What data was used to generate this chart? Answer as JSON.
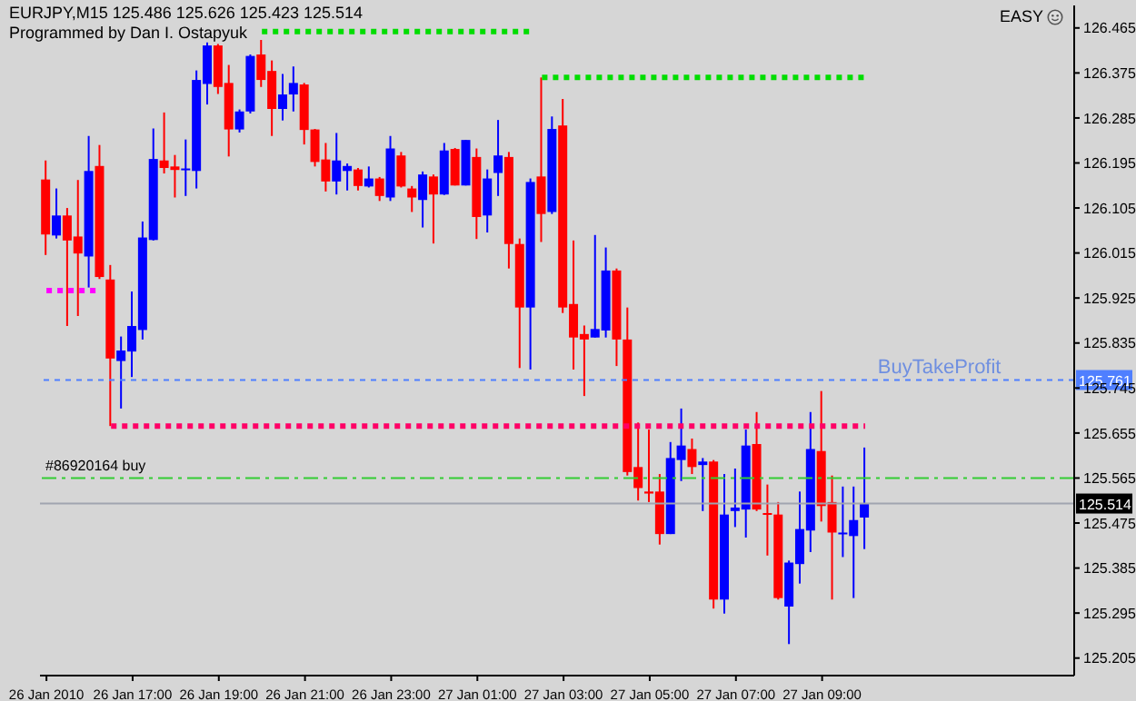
{
  "chart_data": {
    "type": "candlestick",
    "title": "EURJPY,M15 125.486 125.626 125.423 125.514",
    "subtitle": "Programmed by Dan I. Ostapyuk",
    "categories": [
      "26 Jan 2010",
      null,
      null,
      null,
      null,
      null,
      null,
      null,
      "26 Jan 17:00",
      null,
      null,
      null,
      null,
      null,
      null,
      null,
      "26 Jan 19:00",
      null,
      null,
      null,
      null,
      null,
      null,
      null,
      "26 Jan 21:00",
      null,
      null,
      null,
      null,
      null,
      null,
      null,
      "26 Jan 23:00",
      null,
      null,
      null,
      null,
      null,
      null,
      null,
      "27 Jan 01:00",
      null,
      null,
      null,
      null,
      null,
      null,
      null,
      "27 Jan 03:00",
      null,
      null,
      null,
      null,
      null,
      null,
      null,
      "27 Jan 05:00",
      null,
      null,
      null,
      null,
      null,
      null,
      null,
      "27 Jan 07:00",
      null,
      null,
      null,
      null,
      null,
      null,
      null,
      "27 Jan 09:00",
      null,
      null,
      null,
      null
    ],
    "ohlc": [
      [
        126.162,
        126.2,
        126.011,
        126.052
      ],
      [
        126.05,
        126.144,
        126.044,
        126.09
      ],
      [
        126.09,
        126.105,
        125.869,
        126.04
      ],
      [
        126.048,
        126.161,
        125.889,
        126.014
      ],
      [
        126.008,
        126.249,
        125.946,
        126.179
      ],
      [
        126.189,
        126.231,
        125.963,
        125.967
      ],
      [
        125.962,
        125.991,
        125.669,
        125.804
      ],
      [
        125.799,
        125.848,
        125.704,
        125.82
      ],
      [
        125.818,
        125.938,
        125.767,
        125.869
      ],
      [
        125.861,
        126.078,
        125.842,
        126.046
      ],
      [
        126.041,
        126.264,
        126.04,
        126.203
      ],
      [
        126.2,
        126.296,
        126.174,
        126.185
      ],
      [
        126.188,
        126.211,
        126.126,
        126.181
      ],
      [
        126.181,
        126.242,
        126.129,
        126.184
      ],
      [
        126.179,
        126.38,
        126.144,
        126.361
      ],
      [
        126.353,
        126.436,
        126.312,
        126.43
      ],
      [
        126.43,
        126.433,
        126.333,
        126.347
      ],
      [
        126.355,
        126.391,
        126.208,
        126.262
      ],
      [
        126.262,
        126.302,
        126.256,
        126.298
      ],
      [
        126.298,
        126.412,
        126.294,
        126.409
      ],
      [
        126.412,
        126.441,
        126.347,
        126.361
      ],
      [
        126.379,
        126.4,
        126.249,
        126.303
      ],
      [
        126.303,
        126.373,
        126.28,
        126.332
      ],
      [
        126.332,
        126.388,
        126.298,
        126.355
      ],
      [
        126.352,
        126.355,
        126.232,
        126.261
      ],
      [
        126.262,
        126.263,
        126.188,
        126.197
      ],
      [
        126.202,
        126.235,
        126.138,
        126.158
      ],
      [
        126.158,
        126.255,
        126.132,
        126.2
      ],
      [
        126.179,
        126.194,
        126.14,
        126.189
      ],
      [
        126.182,
        126.185,
        126.14,
        126.149
      ],
      [
        126.148,
        126.188,
        126.146,
        126.164
      ],
      [
        126.164,
        126.167,
        126.119,
        126.129
      ],
      [
        126.126,
        126.249,
        126.119,
        126.224
      ],
      [
        126.21,
        126.217,
        126.146,
        126.148
      ],
      [
        126.144,
        126.149,
        126.097,
        126.126
      ],
      [
        126.121,
        126.178,
        126.066,
        126.172
      ],
      [
        126.168,
        126.172,
        126.034,
        126.132
      ],
      [
        126.132,
        126.235,
        126.131,
        126.22
      ],
      [
        126.223,
        126.225,
        126.15,
        126.15
      ],
      [
        126.15,
        126.241,
        126.15,
        126.241
      ],
      [
        126.207,
        126.224,
        126.043,
        126.087
      ],
      [
        126.09,
        126.182,
        126.056,
        126.164
      ],
      [
        126.175,
        126.281,
        126.129,
        126.21
      ],
      [
        126.207,
        126.217,
        125.984,
        126.033
      ],
      [
        126.033,
        126.044,
        125.785,
        125.906
      ],
      [
        125.906,
        126.164,
        125.782,
        126.157
      ],
      [
        126.168,
        126.366,
        126.037,
        126.093
      ],
      [
        126.097,
        126.288,
        126.093,
        126.263
      ],
      [
        126.27,
        126.323,
        125.895,
        125.906
      ],
      [
        125.913,
        126.04,
        125.782,
        125.846
      ],
      [
        125.853,
        125.87,
        125.729,
        125.842
      ],
      [
        125.846,
        126.051,
        125.846,
        125.863
      ],
      [
        125.86,
        126.026,
        125.846,
        125.98
      ],
      [
        125.98,
        125.984,
        125.789,
        125.842
      ],
      [
        125.842,
        125.906,
        125.57,
        125.577
      ],
      [
        125.587,
        125.676,
        125.52,
        125.545
      ],
      [
        125.538,
        125.662,
        125.517,
        125.534
      ],
      [
        125.538,
        125.573,
        125.432,
        125.453
      ],
      [
        125.453,
        125.637,
        125.453,
        125.605
      ],
      [
        125.601,
        125.704,
        125.559,
        125.63
      ],
      [
        125.623,
        125.644,
        125.573,
        125.587
      ],
      [
        125.591,
        125.605,
        125.499,
        125.598
      ],
      [
        125.598,
        125.601,
        125.304,
        125.322
      ],
      [
        125.322,
        125.573,
        125.294,
        125.492
      ],
      [
        125.499,
        125.584,
        125.467,
        125.506
      ],
      [
        125.502,
        125.662,
        125.446,
        125.63
      ],
      [
        125.633,
        125.697,
        125.499,
        125.502
      ],
      [
        125.495,
        125.552,
        125.41,
        125.492
      ],
      [
        125.492,
        125.517,
        125.322,
        125.325
      ],
      [
        125.308,
        125.4,
        125.233,
        125.396
      ],
      [
        125.393,
        125.538,
        125.354,
        125.463
      ],
      [
        125.46,
        125.697,
        125.417,
        125.623
      ],
      [
        125.619,
        125.739,
        125.478,
        125.509
      ],
      [
        125.517,
        125.57,
        125.322,
        125.456
      ],
      [
        125.453,
        125.548,
        125.407,
        125.456
      ],
      [
        125.449,
        125.548,
        125.325,
        125.481
      ],
      [
        125.486,
        125.626,
        125.423,
        125.514
      ]
    ],
    "colors": [
      "#ff0000",
      "#0000ff",
      "#ff0000",
      "#ff0000",
      "#0000ff",
      "#ff0000",
      "#ff0000",
      "#0000ff",
      "#0000ff",
      "#0000ff",
      "#0000ff",
      "#ff0000",
      "#ff0000",
      "#0000ff",
      "#0000ff",
      "#0000ff",
      "#ff0000",
      "#ff0000",
      "#0000ff",
      "#0000ff",
      "#ff0000",
      "#ff0000",
      "#0000ff",
      "#0000ff",
      "#ff0000",
      "#ff0000",
      "#ff0000",
      "#0000ff",
      "#0000ff",
      "#ff0000",
      "#0000ff",
      "#ff0000",
      "#0000ff",
      "#ff0000",
      "#ff0000",
      "#0000ff",
      "#ff0000",
      "#0000ff",
      "#ff0000",
      "#0000ff",
      "#ff0000",
      "#0000ff",
      "#0000ff",
      "#ff0000",
      "#ff0000",
      "#0000ff",
      "#ff0000",
      "#0000ff",
      "#ff0000",
      "#ff0000",
      "#ff0000",
      "#0000ff",
      "#0000ff",
      "#ff0000",
      "#ff0000",
      "#ff0000",
      "#ff0000",
      "#ff0000",
      "#0000ff",
      "#0000ff",
      "#ff0000",
      "#0000ff",
      "#ff0000",
      "#0000ff",
      "#0000ff",
      "#0000ff",
      "#ff0000",
      "#ff0000",
      "#ff0000",
      "#0000ff",
      "#0000ff",
      "#0000ff",
      "#ff0000",
      "#ff0000",
      "#0000ff",
      "#0000ff",
      "#0000ff"
    ],
    "series": [
      {
        "type": "line",
        "color": "#ff00ff",
        "line_style": "dotted",
        "values": [
          125.94,
          125.94,
          125.94,
          125.94,
          125.94,
          125.94,
          null,
          null,
          null,
          null,
          null,
          null,
          null,
          null,
          null,
          null,
          null,
          null,
          null,
          null,
          null,
          null,
          null,
          null,
          null,
          null,
          null,
          null,
          null,
          null,
          null,
          null,
          null,
          null,
          null,
          null,
          null,
          null,
          null,
          null,
          null,
          null,
          null,
          null,
          null,
          null,
          null,
          null,
          null,
          null,
          null,
          null,
          null,
          null,
          null,
          null,
          null,
          null,
          null,
          null,
          null,
          null,
          null,
          null,
          null,
          null,
          null,
          null,
          null,
          null,
          null,
          null,
          null,
          null,
          null,
          null,
          null
        ]
      },
      {
        "type": "line",
        "color": "#ff0066",
        "line_style": "dotted",
        "values": [
          null,
          null,
          null,
          null,
          null,
          null,
          125.669,
          125.669,
          125.669,
          125.669,
          125.669,
          125.669,
          125.669,
          125.669,
          125.669,
          125.669,
          125.669,
          125.669,
          125.669,
          125.669,
          125.669,
          125.669,
          125.669,
          125.669,
          125.669,
          125.669,
          125.669,
          125.669,
          125.669,
          125.669,
          125.669,
          125.669,
          125.669,
          125.669,
          125.669,
          125.669,
          125.669,
          125.669,
          125.669,
          125.669,
          125.669,
          125.669,
          125.669,
          125.669,
          125.669,
          125.669,
          125.669,
          125.669,
          125.669,
          125.669,
          125.669,
          125.669,
          125.669,
          125.669,
          125.669,
          125.669,
          125.669,
          125.669,
          125.669,
          125.669,
          125.669,
          125.669,
          125.669,
          125.669,
          125.669,
          125.669,
          125.669,
          125.669,
          125.669,
          125.669,
          125.669,
          125.669,
          125.669,
          125.669,
          125.669,
          125.669,
          125.669
        ]
      },
      {
        "type": "line",
        "color": "#00dd00",
        "line_style": "dotted",
        "values": [
          null,
          null,
          null,
          null,
          null,
          null,
          null,
          null,
          null,
          null,
          null,
          null,
          null,
          null,
          null,
          null,
          null,
          null,
          null,
          null,
          126.458,
          126.458,
          126.458,
          126.458,
          126.458,
          126.458,
          126.458,
          126.458,
          126.458,
          126.458,
          126.458,
          126.458,
          126.458,
          126.458,
          126.458,
          126.458,
          126.458,
          126.458,
          126.458,
          126.458,
          126.458,
          126.458,
          126.458,
          126.458,
          126.458,
          126.458,
          null,
          null,
          null,
          null,
          null,
          null,
          null,
          null,
          null,
          null,
          null,
          null,
          null,
          null,
          null,
          null,
          null,
          null,
          null,
          null,
          null,
          null,
          null,
          null,
          null,
          null,
          null,
          null,
          null,
          null,
          null
        ]
      },
      {
        "type": "line",
        "color": "#00dd00",
        "line_style": "dotted",
        "values": [
          null,
          null,
          null,
          null,
          null,
          null,
          null,
          null,
          null,
          null,
          null,
          null,
          null,
          null,
          null,
          null,
          null,
          null,
          null,
          null,
          null,
          null,
          null,
          null,
          null,
          null,
          null,
          null,
          null,
          null,
          null,
          null,
          null,
          null,
          null,
          null,
          null,
          null,
          null,
          null,
          null,
          null,
          null,
          null,
          null,
          null,
          126.366,
          126.366,
          126.366,
          126.366,
          126.366,
          126.366,
          126.366,
          126.366,
          126.366,
          126.366,
          126.366,
          126.366,
          126.366,
          126.366,
          126.366,
          126.366,
          126.366,
          126.366,
          126.366,
          126.366,
          126.366,
          126.366,
          126.366,
          126.366,
          126.366,
          126.366,
          126.366,
          126.366,
          126.366,
          126.366,
          126.366
        ]
      }
    ],
    "ref_lines": [
      {
        "axis": "y",
        "value": 125.761,
        "label": "125.761",
        "color": "#4f7fff",
        "line_style": "dotted"
      },
      {
        "axis": "y",
        "value": 125.565,
        "label": null,
        "color": "#33cc33",
        "line_style": "dashed"
      },
      {
        "axis": "y",
        "value": 125.514,
        "label": "125.514",
        "color": "#a0a4b0",
        "line_style": "solid"
      }
    ],
    "annotations": [
      {
        "text": "BuyTakeProfit",
        "y": 125.761
      },
      {
        "text": "#86920164 buy",
        "y": 125.565
      },
      "EASY"
    ],
    "ylim": [
      125.17,
      126.51
    ],
    "yticks": [
      125.205,
      125.295,
      125.385,
      125.475,
      125.565,
      125.655,
      125.745,
      125.835,
      125.925,
      126.015,
      126.105,
      126.195,
      126.285,
      126.375,
      126.465
    ]
  }
}
